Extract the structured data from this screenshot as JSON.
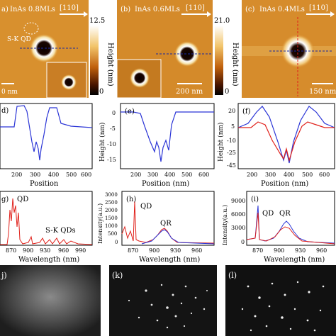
{
  "afm_row": {
    "panels": [
      {
        "label": "a)",
        "sample": "InAs 0.8MLs",
        "direction": "[110]",
        "annotation": "S-K QD",
        "scalebar": "0 nm"
      },
      {
        "label": "(b)",
        "sample": "InAs 0.6MLs",
        "direction": "[110]",
        "scalebar": "200 nm"
      },
      {
        "label": "(c)",
        "sample": "InAs 0.4MLs",
        "direction": "[110]",
        "scalebar": "150 nm"
      }
    ],
    "colorbars": [
      {
        "max": "12.5",
        "min": "0",
        "label": "Height (nm)"
      },
      {
        "max": "21.0",
        "min": "0",
        "label": "Height (nm)"
      }
    ]
  },
  "profile_row": {
    "panels": [
      {
        "label": "d)",
        "xlabel": "Position",
        "xticks": [
          "200",
          "300",
          "400",
          "500",
          "600"
        ]
      },
      {
        "label": "(e)",
        "ylabel": "Height (nm)",
        "xlabel": "Position (nm)",
        "xticks": [
          "200",
          "300",
          "400",
          "500",
          "600"
        ],
        "yticks": [
          "0",
          "-5",
          "-10",
          "-15"
        ]
      },
      {
        "label": "(f)",
        "ylabel": "Height (nm)",
        "xlabel": "Position (nm)",
        "xticks": [
          "200",
          "300",
          "400",
          "500",
          "600"
        ],
        "yticks": [
          "20",
          "5",
          "-10",
          "-25",
          "-45"
        ]
      }
    ]
  },
  "pl_row": {
    "panels": [
      {
        "label": "g)",
        "qd": "QD",
        "sk": "S-K QDs",
        "xlabel": "Wavelength (nm)",
        "xticks": [
          "870",
          "900",
          "930",
          "960",
          "990"
        ]
      },
      {
        "label": "(h)",
        "qd": "QD",
        "qr": "QR",
        "ylabel": "Intensity(a.u.)",
        "xlabel": "Wavelength (nm)",
        "xticks": [
          "870",
          "900",
          "930",
          "960"
        ],
        "yticks": [
          "3000",
          "2500",
          "2000",
          "1500",
          "1000",
          "500",
          "0"
        ]
      },
      {
        "label": "(i)",
        "qd": "QD",
        "qr": "QR",
        "ylabel": "Intensity(a.u.)",
        "xlabel": "Wavelength (nm)",
        "xticks": [
          "870",
          "900",
          "930",
          "960"
        ],
        "yticks": [
          "9000",
          "6000",
          "3000",
          "0"
        ]
      }
    ]
  },
  "diff_row": {
    "panels": [
      {
        "label": "j)"
      },
      {
        "label": "(k)"
      },
      {
        "label": "(l)"
      }
    ]
  },
  "colors": {
    "blue": "#2b35d6",
    "red": "#e0201a"
  }
}
